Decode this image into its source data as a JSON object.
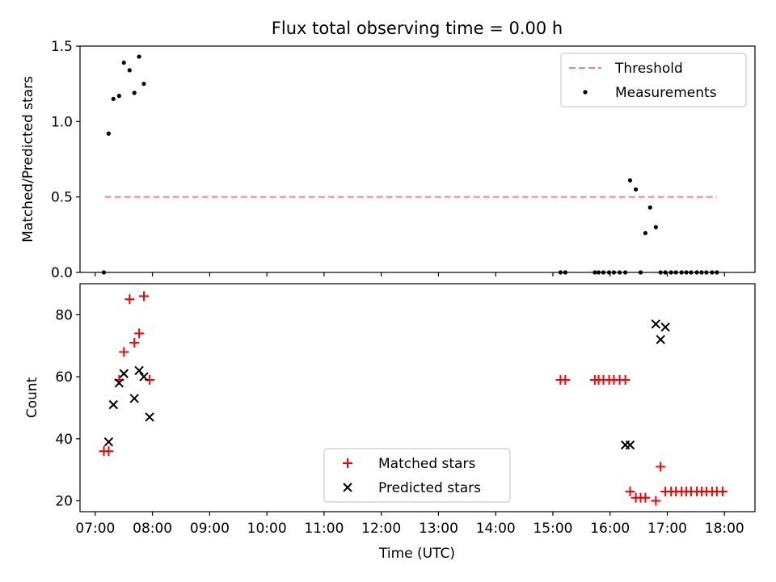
{
  "chart_data": [
    {
      "type": "scatter",
      "title": "Flux total observing time = 0.00 h",
      "xlabel": "",
      "ylabel": "Matched/Predicted stars",
      "xlim": [
        "06:44",
        "18:32"
      ],
      "ylim": [
        0,
        1.5
      ],
      "yticks": [
        "0.0",
        "0.5",
        "1.0",
        "1.5"
      ],
      "grid": false,
      "legend_position": "upper right",
      "legend": [
        "Threshold",
        "Measurements"
      ],
      "threshold": {
        "name": "Threshold",
        "y": 0.5,
        "x_start": "07:10",
        "x_end": "17:52",
        "color": "#ff7f7f",
        "style": "dashed"
      },
      "series": [
        {
          "name": "Measurements",
          "color": "#000000",
          "x": [
            "07:09",
            "07:14",
            "07:19",
            "07:25",
            "07:30",
            "07:36",
            "07:41",
            "07:46",
            "07:51",
            "15:08",
            "15:13",
            "15:44",
            "15:48",
            "15:53",
            "15:59",
            "16:04",
            "16:10",
            "16:16",
            "16:21",
            "16:27",
            "16:32",
            "16:37",
            "16:42",
            "16:48",
            "16:53",
            "16:58",
            "17:04",
            "17:09",
            "17:15",
            "17:20",
            "17:25",
            "17:31",
            "17:36",
            "17:41",
            "17:47",
            "17:52"
          ],
          "y": [
            0.0,
            0.92,
            1.15,
            1.17,
            1.39,
            1.34,
            1.19,
            1.43,
            1.25,
            0.0,
            0.0,
            0.0,
            0.0,
            0.0,
            0.0,
            0.0,
            0.0,
            0.0,
            0.61,
            0.55,
            0.0,
            0.26,
            0.43,
            0.3,
            0.0,
            0.0,
            0.0,
            0.0,
            0.0,
            0.0,
            0.0,
            0.0,
            0.0,
            0.0,
            0.0,
            0.0
          ]
        }
      ]
    },
    {
      "type": "scatter",
      "title": "",
      "xlabel": "Time (UTC)",
      "ylabel": "Count",
      "xlim": [
        "06:44",
        "18:32"
      ],
      "ylim": [
        16.5,
        90
      ],
      "xticks": [
        "07:00",
        "08:00",
        "09:00",
        "10:00",
        "11:00",
        "12:00",
        "13:00",
        "14:00",
        "15:00",
        "16:00",
        "17:00",
        "18:00"
      ],
      "yticks": [
        "20",
        "40",
        "60",
        "80"
      ],
      "grid": false,
      "legend_position": "lower center",
      "legend": [
        "Matched stars",
        "Predicted stars"
      ],
      "series": [
        {
          "name": "Matched stars",
          "marker": "plus",
          "color": "#ff0000",
          "x": [
            "07:09",
            "07:14",
            "07:25",
            "07:30",
            "07:36",
            "07:41",
            "07:46",
            "07:51",
            "07:57",
            "15:08",
            "15:13",
            "15:44",
            "15:48",
            "15:53",
            "15:59",
            "16:04",
            "16:10",
            "16:16",
            "16:21",
            "16:27",
            "16:32",
            "16:37",
            "16:48",
            "16:53",
            "16:58",
            "17:04",
            "17:09",
            "17:15",
            "17:20",
            "17:25",
            "17:31",
            "17:36",
            "17:41",
            "17:47",
            "17:52",
            "17:58"
          ],
          "y": [
            36,
            36,
            59,
            68,
            85,
            71,
            74,
            86,
            59,
            59,
            59,
            59,
            59,
            59,
            59,
            59,
            59,
            59,
            23,
            21,
            21,
            21,
            20,
            31,
            23,
            23,
            23,
            23,
            23,
            23,
            23,
            23,
            23,
            23,
            23,
            23
          ]
        },
        {
          "name": "Predicted stars",
          "marker": "x",
          "color": "#000000",
          "x": [
            "07:14",
            "07:19",
            "07:25",
            "07:30",
            "07:41",
            "07:46",
            "07:51",
            "07:57",
            "16:16",
            "16:21",
            "16:48",
            "16:53",
            "16:58"
          ],
          "y": [
            39,
            51,
            58,
            61,
            53,
            62,
            60,
            47,
            38,
            38,
            77,
            72,
            76
          ]
        }
      ]
    }
  ]
}
